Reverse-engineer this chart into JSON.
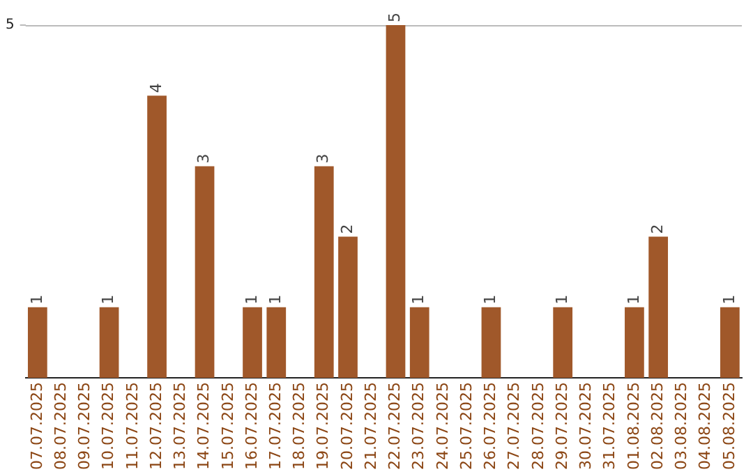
{
  "chart_data": {
    "type": "bar",
    "categories": [
      "07.07.2025",
      "08.07.2025",
      "09.07.2025",
      "10.07.2025",
      "11.07.2025",
      "12.07.2025",
      "13.07.2025",
      "14.07.2025",
      "15.07.2025",
      "16.07.2025",
      "17.07.2025",
      "18.07.2025",
      "19.07.2025",
      "20.07.2025",
      "21.07.2025",
      "22.07.2025",
      "23.07.2025",
      "24.07.2025",
      "25.07.2025",
      "26.07.2025",
      "27.07.2025",
      "28.07.2025",
      "29.07.2025",
      "30.07.2025",
      "31.07.2025",
      "01.08.2025",
      "02.08.2025",
      "03.08.2025",
      "04.08.2025",
      "05.08.2025"
    ],
    "values": [
      1,
      0,
      0,
      1,
      0,
      4,
      0,
      3,
      0,
      1,
      1,
      0,
      3,
      2,
      0,
      5,
      1,
      0,
      0,
      1,
      0,
      0,
      1,
      0,
      0,
      1,
      2,
      0,
      0,
      1
    ],
    "value_labels": [
      "1",
      null,
      null,
      "1",
      null,
      "4",
      null,
      "3",
      null,
      "1",
      "1",
      null,
      "3",
      "2",
      null,
      "5",
      "1",
      null,
      null,
      "1",
      null,
      null,
      "1",
      null,
      null,
      "1",
      "2",
      null,
      null,
      "1"
    ],
    "color": "#a0582a",
    "ylim": [
      0,
      5
    ],
    "yticks": [
      5
    ],
    "legend": false
  }
}
